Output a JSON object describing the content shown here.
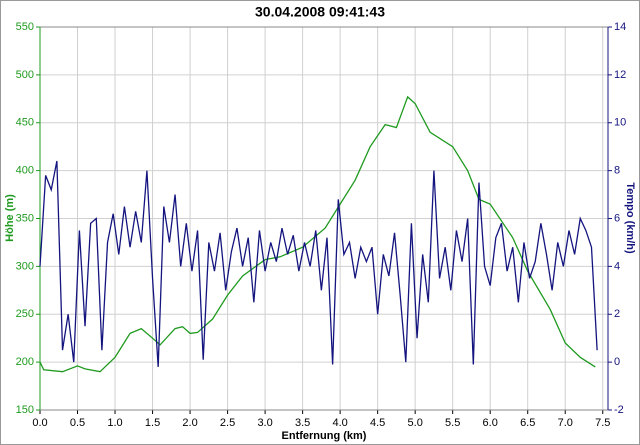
{
  "chart_data": {
    "type": "line",
    "title": "30.04.2008 09:41:43",
    "x_label": "Entfernung (km)",
    "y_label": "Höhe (m)",
    "y2_label": "Tempo (km/h)",
    "xlim": [
      0,
      7.57
    ],
    "ylim": [
      150,
      550
    ],
    "y2lim": [
      -2,
      14
    ],
    "grid": true,
    "xticks": [
      {
        "value": 0,
        "label": "0.0"
      },
      0.5,
      {
        "value": 1,
        "label": "1.0"
      },
      1.5,
      {
        "value": 2,
        "label": "2.0"
      },
      2.5,
      {
        "value": 3,
        "label": "3.0"
      },
      3.5,
      {
        "value": 4,
        "label": "4.0"
      },
      4.5,
      {
        "value": 5,
        "label": "5.0"
      },
      5.5,
      {
        "value": 6,
        "label": "6.0"
      },
      6.5,
      {
        "value": 7,
        "label": "7.0"
      },
      7.5
    ],
    "yticks": [
      150,
      200,
      250,
      300,
      350,
      400,
      450,
      500,
      550
    ],
    "y2ticks": [
      -2,
      0,
      2,
      4,
      6,
      8,
      10,
      12,
      14
    ],
    "series": [
      {
        "color": "#1f9a1f",
        "axis": "y",
        "x": [
          0,
          0.05,
          0.3,
          0.5,
          0.6,
          0.8,
          1.0,
          1.2,
          1.35,
          1.5,
          1.6,
          1.8,
          1.9,
          2.0,
          2.1,
          2.3,
          2.5,
          2.7,
          3.0,
          3.2,
          3.5,
          3.8,
          4.0,
          4.2,
          4.4,
          4.6,
          4.75,
          4.9,
          5.0,
          5.2,
          5.5,
          5.7,
          5.85,
          6.0,
          6.3,
          6.5,
          6.8,
          7.0,
          7.2,
          7.4
        ],
        "values": [
          200,
          192,
          190,
          196,
          193,
          190,
          205,
          230,
          235,
          225,
          218,
          235,
          237,
          230,
          231,
          245,
          270,
          290,
          307,
          310,
          320,
          340,
          365,
          390,
          425,
          448,
          445,
          477,
          470,
          440,
          425,
          400,
          370,
          365,
          330,
          295,
          255,
          220,
          205,
          195
        ]
      },
      {
        "color": "#14147f",
        "axis": "y2",
        "x": [
          0,
          0.075,
          0.15,
          0.225,
          0.3,
          0.375,
          0.45,
          0.525,
          0.6,
          0.675,
          0.75,
          0.825,
          0.9,
          0.975,
          1.05,
          1.125,
          1.2,
          1.275,
          1.35,
          1.425,
          1.5,
          1.575,
          1.65,
          1.725,
          1.8,
          1.875,
          1.95,
          2.025,
          2.1,
          2.175,
          2.25,
          2.325,
          2.4,
          2.475,
          2.55,
          2.625,
          2.7,
          2.775,
          2.85,
          2.925,
          3.0,
          3.075,
          3.15,
          3.225,
          3.3,
          3.375,
          3.45,
          3.525,
          3.6,
          3.675,
          3.75,
          3.825,
          3.9,
          3.975,
          4.05,
          4.125,
          4.2,
          4.275,
          4.35,
          4.425,
          4.5,
          4.575,
          4.65,
          4.725,
          4.8,
          4.875,
          4.95,
          5.025,
          5.1,
          5.175,
          5.25,
          5.325,
          5.4,
          5.475,
          5.55,
          5.625,
          5.7,
          5.775,
          5.85,
          5.925,
          6.0,
          6.075,
          6.15,
          6.225,
          6.3,
          6.375,
          6.45,
          6.525,
          6.6,
          6.675,
          6.75,
          6.825,
          6.9,
          6.975,
          7.05,
          7.125,
          7.2,
          7.275,
          7.35,
          7.425
        ],
        "values": [
          4.0,
          7.8,
          7.2,
          8.4,
          0.5,
          2.0,
          0.0,
          5.5,
          1.5,
          5.8,
          6.0,
          0.5,
          5.0,
          6.2,
          4.5,
          6.5,
          4.8,
          6.3,
          5.0,
          8.0,
          3.5,
          -0.2,
          6.5,
          5.0,
          7.0,
          4.0,
          5.8,
          3.8,
          5.5,
          0.1,
          5.0,
          3.8,
          5.4,
          3.0,
          4.6,
          5.6,
          4.0,
          5.2,
          2.5,
          5.5,
          3.8,
          5.0,
          4.2,
          5.6,
          4.5,
          5.3,
          3.8,
          5.0,
          4.0,
          5.5,
          3.0,
          5.2,
          -0.1,
          6.8,
          4.5,
          5.0,
          3.5,
          4.8,
          4.2,
          4.8,
          2.0,
          4.5,
          3.6,
          5.4,
          2.8,
          0.0,
          5.8,
          1.0,
          4.5,
          2.5,
          8.0,
          3.5,
          4.8,
          3.0,
          5.5,
          4.2,
          6.0,
          -0.1,
          7.5,
          4.0,
          3.2,
          5.2,
          5.8,
          3.8,
          4.8,
          2.5,
          5.0,
          3.5,
          4.2,
          5.8,
          4.5,
          3.0,
          5.0,
          4.0,
          5.5,
          4.5,
          6.0,
          5.5,
          4.8,
          0.5
        ]
      }
    ]
  }
}
